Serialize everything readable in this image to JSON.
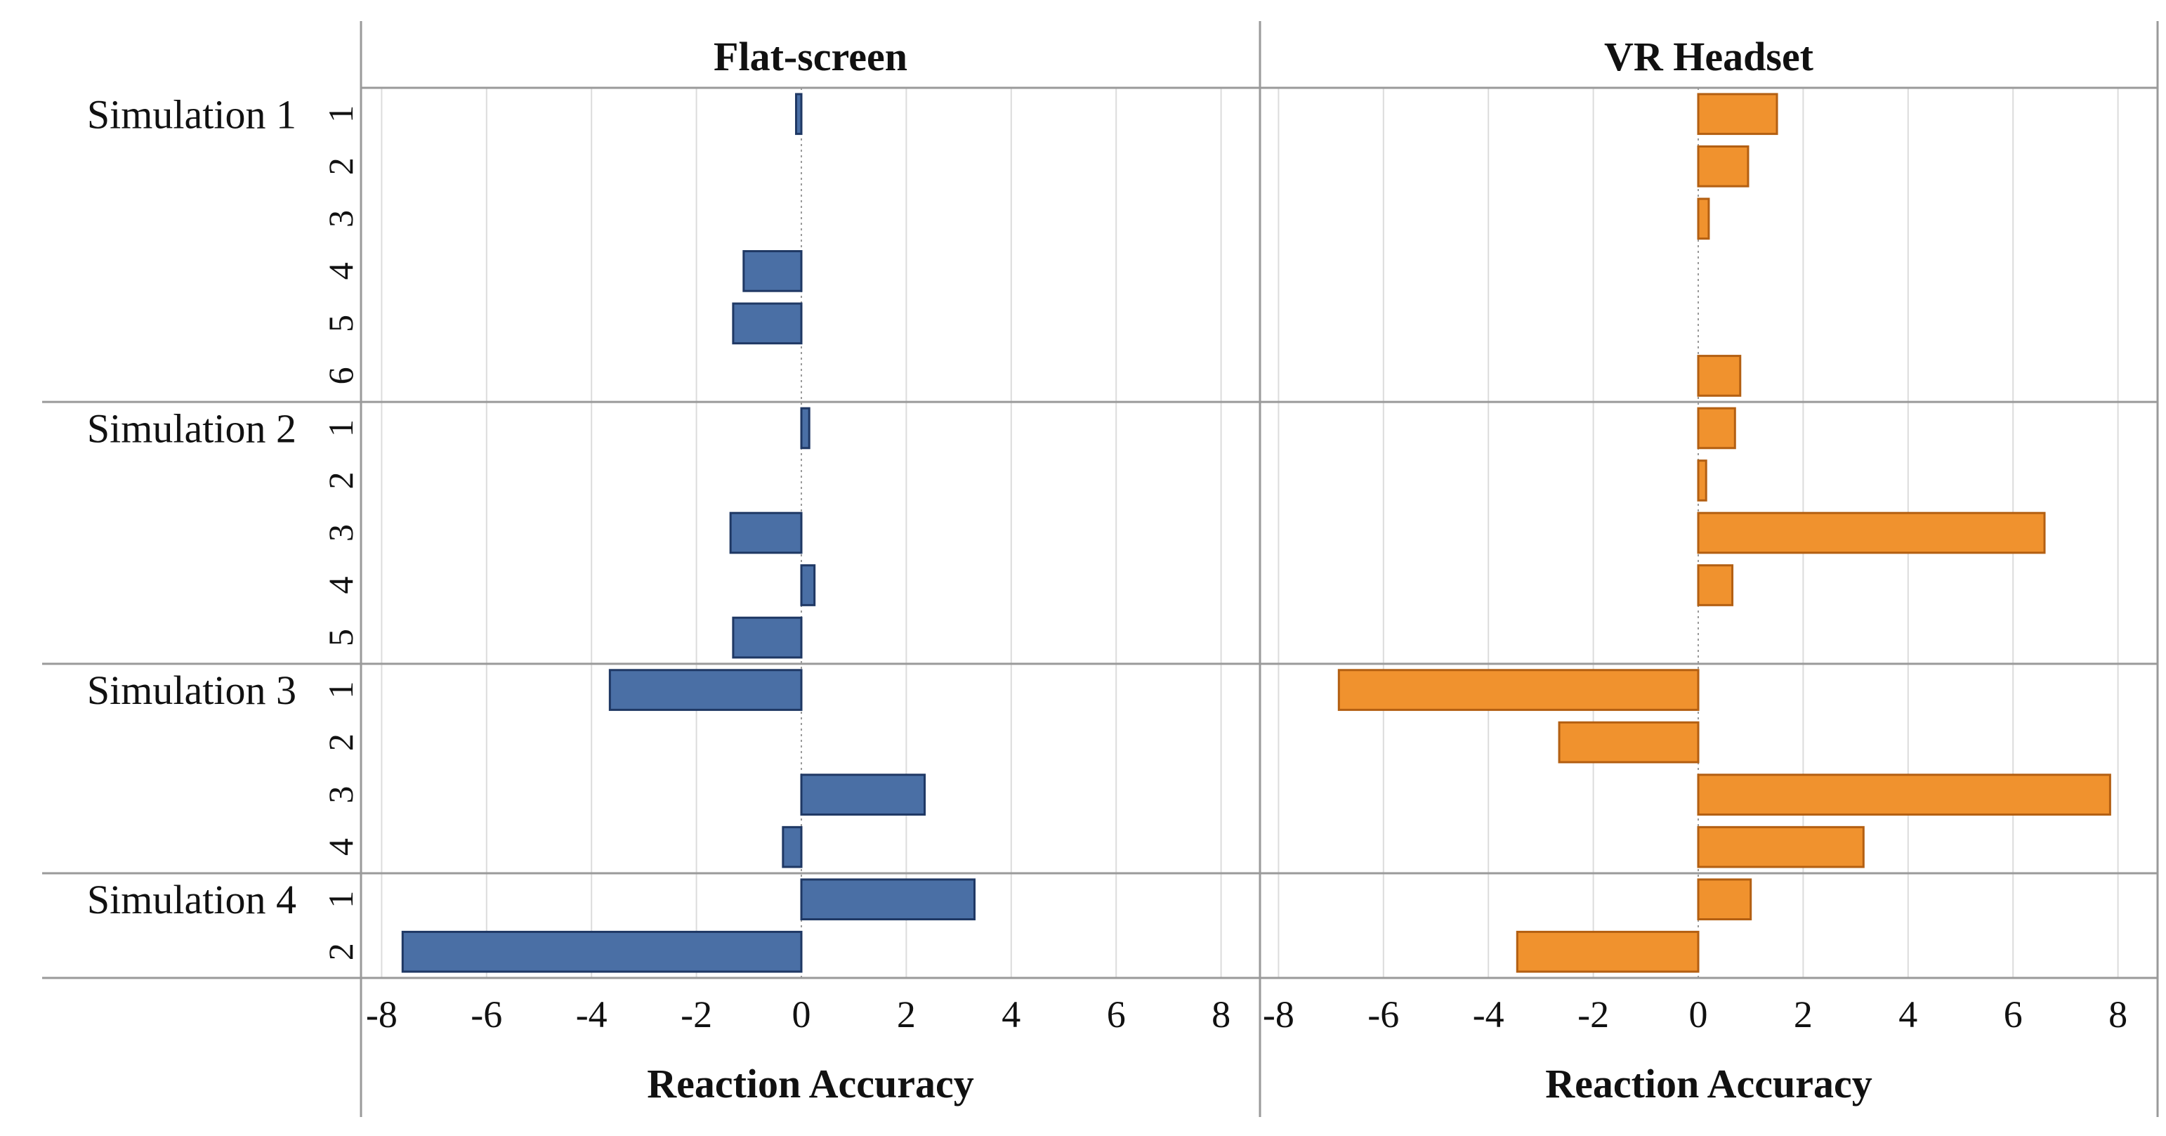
{
  "chart_data": {
    "type": "bar",
    "orientation": "horizontal",
    "grid": true,
    "xlim": [
      -8,
      8
    ],
    "xticks": [
      -8,
      -6,
      -4,
      -2,
      0,
      2,
      4,
      6,
      8
    ],
    "xtick_labels": [
      "-8",
      "-6",
      "-4",
      "-2",
      "0",
      "2",
      "4",
      "6",
      "8"
    ],
    "xlabel": "Reaction Accuracy",
    "panels": [
      "Flat-screen",
      "VR Headset"
    ],
    "groups": [
      {
        "label": "Simulation 1",
        "trials": [
          "1",
          "2",
          "3",
          "4",
          "5",
          "6"
        ]
      },
      {
        "label": "Simulation 2",
        "trials": [
          "1",
          "2",
          "3",
          "4",
          "5"
        ]
      },
      {
        "label": "Simulation 3",
        "trials": [
          "1",
          "2",
          "3",
          "4"
        ]
      },
      {
        "label": "Simulation 4",
        "trials": [
          "1",
          "2"
        ]
      }
    ],
    "series": [
      {
        "name": "Flat-screen",
        "color": "#4a6fa5",
        "border": "#1f3864",
        "values": [
          -0.1,
          0,
          0,
          -1.1,
          -1.3,
          0,
          0.15,
          0,
          -1.35,
          0.25,
          -1.3,
          -3.65,
          0,
          2.35,
          -0.35,
          3.3,
          -7.6
        ]
      },
      {
        "name": "VR Headset",
        "color": "#f0922e",
        "border": "#b35f12",
        "values": [
          1.5,
          0.95,
          0.2,
          0,
          0,
          0.8,
          0.7,
          0.15,
          6.6,
          0.65,
          0,
          -6.85,
          -2.65,
          7.85,
          3.15,
          1.0,
          -3.45
        ]
      }
    ]
  }
}
